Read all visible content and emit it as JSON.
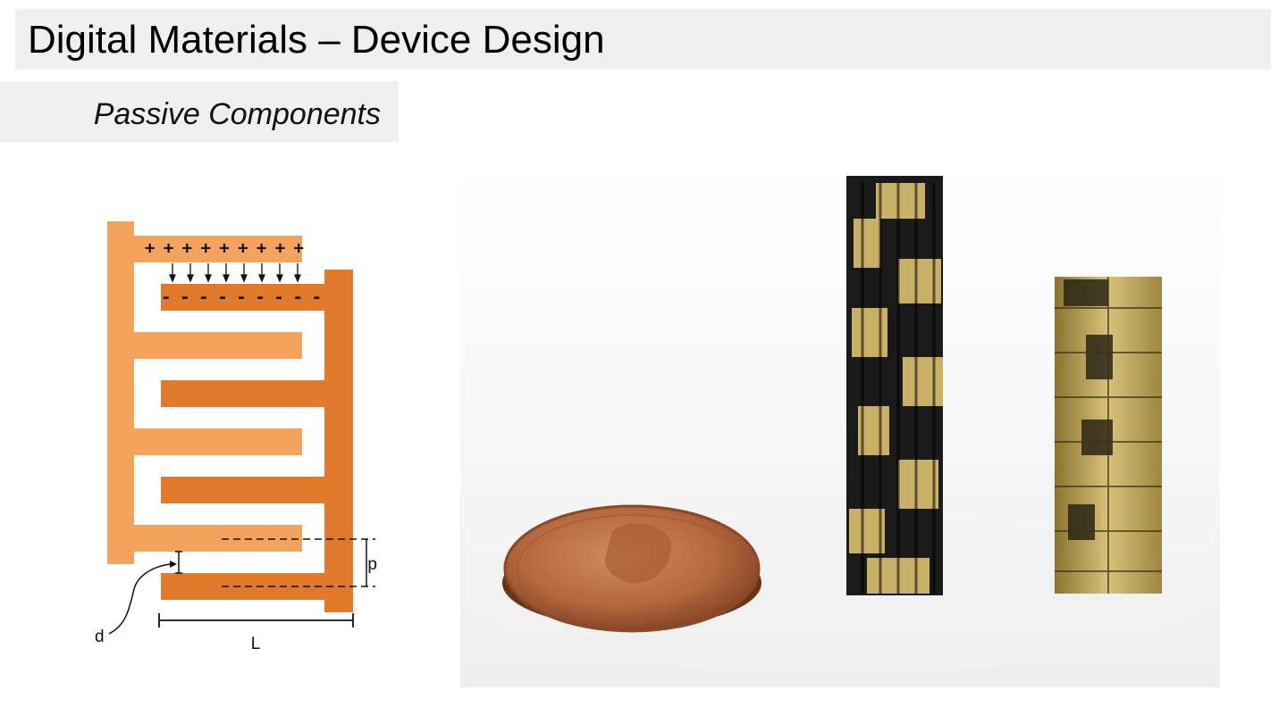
{
  "header": {
    "title": "Digital Materials – Device Design",
    "subtitle": "Passive Components"
  },
  "diagram": {
    "plus_charges": "+++++++++",
    "minus_charges": "- - - - - - - - -",
    "label_p": "p",
    "label_d": "d",
    "label_L": "L",
    "colors": {
      "left_electrode": "#f4a35e",
      "right_electrode": "#e07a2a",
      "annotation": "#111111"
    }
  },
  "photo": {
    "description_icon": "penny-and-capacitor-stacks"
  }
}
